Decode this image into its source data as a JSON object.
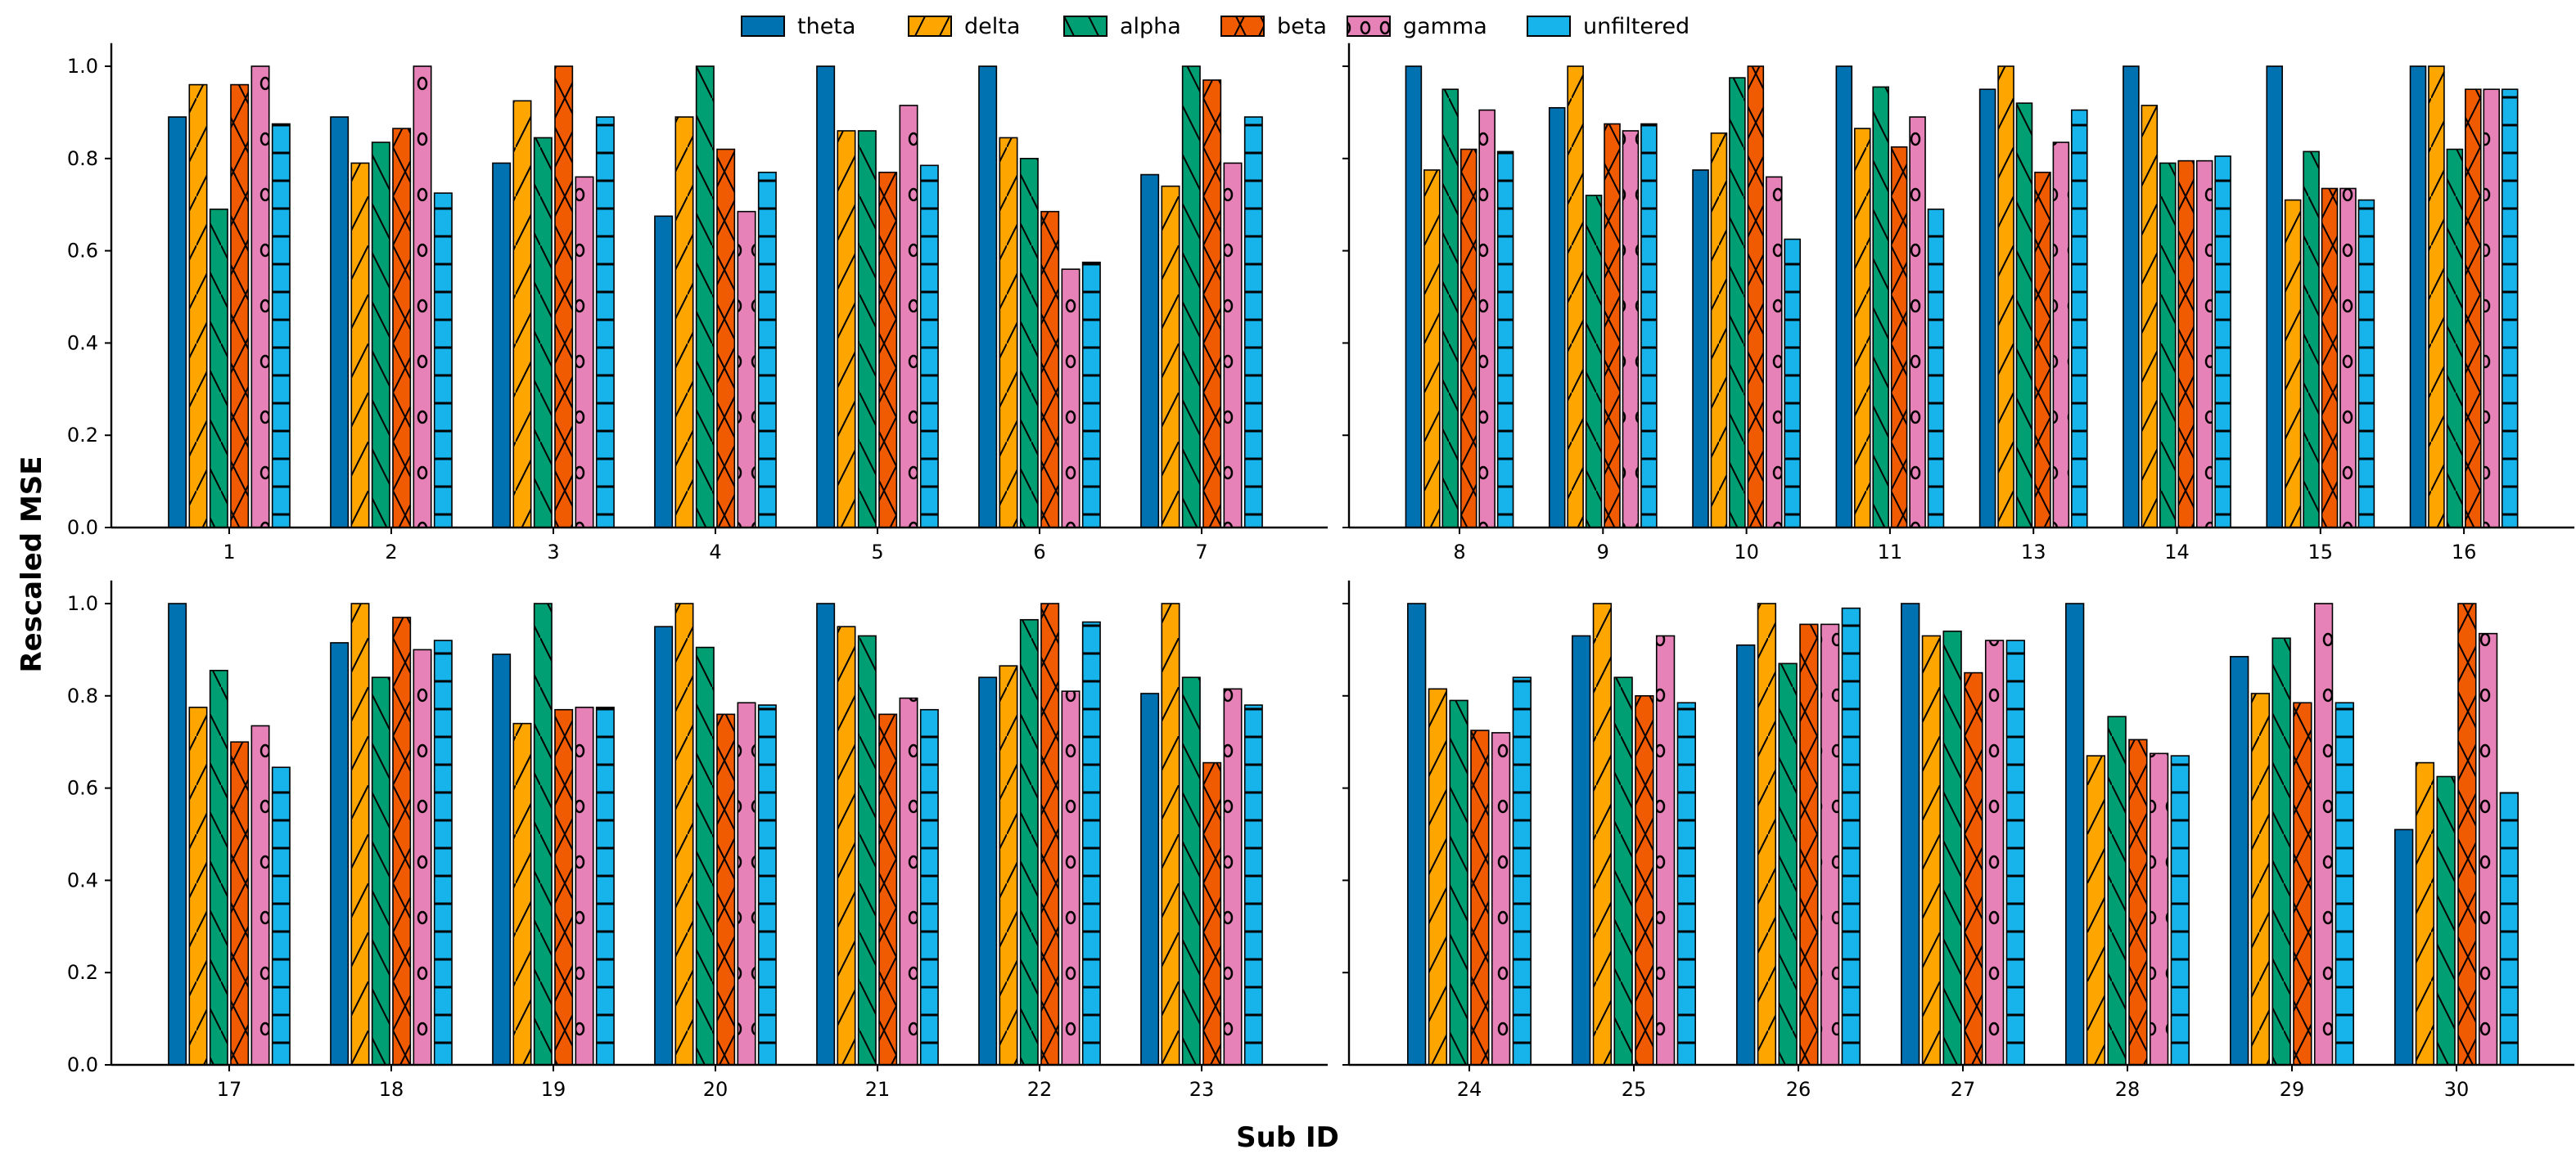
{
  "chart_data": {
    "type": "bar",
    "ylabel": "Rescaled MSE",
    "xlabel": "Sub ID",
    "ylim": [
      0,
      1.05
    ],
    "yticks": [
      "0.0",
      "0.2",
      "0.4",
      "0.6",
      "0.8",
      "1.0"
    ],
    "legend_placement": "top-center",
    "grid": false,
    "series_names": [
      "theta",
      "delta",
      "alpha",
      "beta",
      "gamma",
      "unfiltered"
    ],
    "series_colors": [
      "#0072B2",
      "#FFA500",
      "#009E73",
      "#F05A00",
      "#E782B8",
      "#16B4EA"
    ],
    "series_hatches": [
      "none",
      "/",
      "\\",
      "x",
      "o",
      "-"
    ],
    "panels": [
      {
        "categories": [
          "1",
          "2",
          "3",
          "4",
          "5",
          "6",
          "7"
        ],
        "series": [
          {
            "name": "theta",
            "values": [
              0.89,
              0.89,
              0.79,
              0.675,
              1.0,
              1.0,
              0.765
            ]
          },
          {
            "name": "delta",
            "values": [
              0.96,
              0.79,
              0.925,
              0.89,
              0.86,
              0.845,
              0.74
            ]
          },
          {
            "name": "alpha",
            "values": [
              0.69,
              0.835,
              0.845,
              1.0,
              0.86,
              0.8,
              1.0
            ]
          },
          {
            "name": "beta",
            "values": [
              0.96,
              0.865,
              1.0,
              0.82,
              0.77,
              0.685,
              0.97
            ]
          },
          {
            "name": "gamma",
            "values": [
              1.0,
              1.0,
              0.76,
              0.685,
              0.915,
              0.56,
              0.79
            ]
          },
          {
            "name": "unfiltered",
            "values": [
              0.875,
              0.725,
              0.89,
              0.77,
              0.785,
              0.575,
              0.89
            ]
          }
        ]
      },
      {
        "categories": [
          "8",
          "9",
          "10",
          "11",
          "13",
          "14",
          "15",
          "16"
        ],
        "series": [
          {
            "name": "theta",
            "values": [
              1.0,
              0.91,
              0.775,
              1.0,
              0.95,
              1.0,
              1.0,
              1.0
            ]
          },
          {
            "name": "delta",
            "values": [
              0.775,
              1.0,
              0.855,
              0.865,
              1.0,
              0.915,
              0.71,
              1.0
            ]
          },
          {
            "name": "alpha",
            "values": [
              0.95,
              0.72,
              0.975,
              0.955,
              0.92,
              0.79,
              0.815,
              0.82
            ]
          },
          {
            "name": "beta",
            "values": [
              0.82,
              0.875,
              1.0,
              0.825,
              0.77,
              0.795,
              0.735,
              0.95
            ]
          },
          {
            "name": "gamma",
            "values": [
              0.905,
              0.86,
              0.76,
              0.89,
              0.835,
              0.795,
              0.735,
              0.95
            ]
          },
          {
            "name": "unfiltered",
            "values": [
              0.815,
              0.875,
              0.625,
              0.69,
              0.905,
              0.805,
              0.71,
              0.95
            ]
          }
        ]
      },
      {
        "categories": [
          "17",
          "18",
          "19",
          "20",
          "21",
          "22",
          "23"
        ],
        "series": [
          {
            "name": "theta",
            "values": [
              1.0,
              0.915,
              0.89,
              0.95,
              1.0,
              0.84,
              0.805
            ]
          },
          {
            "name": "delta",
            "values": [
              0.775,
              1.0,
              0.74,
              1.0,
              0.95,
              0.865,
              1.0
            ]
          },
          {
            "name": "alpha",
            "values": [
              0.855,
              0.84,
              1.0,
              0.905,
              0.93,
              0.965,
              0.84
            ]
          },
          {
            "name": "beta",
            "values": [
              0.7,
              0.97,
              0.77,
              0.76,
              0.76,
              1.0,
              0.655
            ]
          },
          {
            "name": "gamma",
            "values": [
              0.735,
              0.9,
              0.775,
              0.785,
              0.795,
              0.81,
              0.815
            ]
          },
          {
            "name": "unfiltered",
            "values": [
              0.645,
              0.92,
              0.775,
              0.78,
              0.77,
              0.96,
              0.78
            ]
          }
        ]
      },
      {
        "categories": [
          "24",
          "25",
          "26",
          "27",
          "28",
          "29",
          "30"
        ],
        "series": [
          {
            "name": "theta",
            "values": [
              1.0,
              0.93,
              0.91,
              1.0,
              1.0,
              0.885,
              0.51
            ]
          },
          {
            "name": "delta",
            "values": [
              0.815,
              1.0,
              1.0,
              0.93,
              0.67,
              0.805,
              0.655
            ]
          },
          {
            "name": "alpha",
            "values": [
              0.79,
              0.84,
              0.87,
              0.94,
              0.755,
              0.925,
              0.625
            ]
          },
          {
            "name": "beta",
            "values": [
              0.725,
              0.8,
              0.955,
              0.85,
              0.705,
              0.785,
              1.0
            ]
          },
          {
            "name": "gamma",
            "values": [
              0.72,
              0.93,
              0.955,
              0.92,
              0.675,
              1.0,
              0.935
            ]
          },
          {
            "name": "unfiltered",
            "values": [
              0.84,
              0.785,
              0.99,
              0.92,
              0.67,
              0.785,
              0.59
            ]
          }
        ]
      }
    ]
  }
}
